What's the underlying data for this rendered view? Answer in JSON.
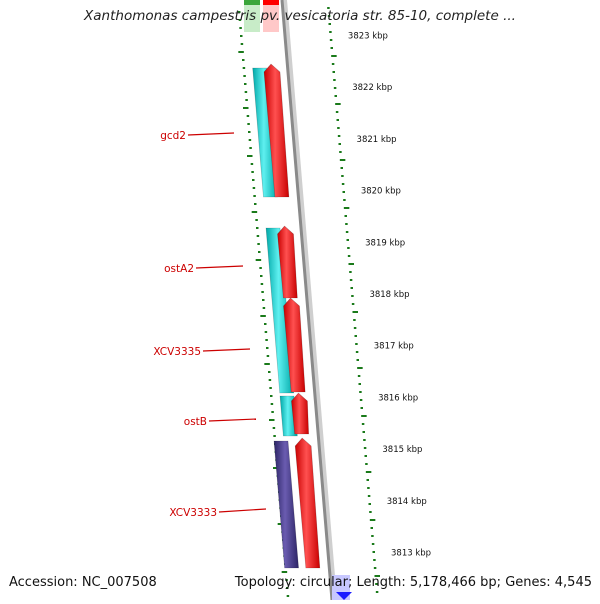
{
  "title": "Xanthomonas campestris pv. vesicatoria str. 85-10, complete ...",
  "colors": {
    "leading_strand": "#00c8c8",
    "lagging_strand": "#ff0000",
    "special_gene": "#4a3c8c",
    "label": "#cc0000",
    "tick": "#1a7a1a",
    "backbone": "#8a8a8a"
  },
  "genes": [
    {
      "name": "gcd2",
      "strand": "leading"
    },
    {
      "name": "ostA2",
      "strand": "leading"
    },
    {
      "name": "XCV3335",
      "strand": "leading"
    },
    {
      "name": "ostB",
      "strand": "leading"
    },
    {
      "name": "XCV3333",
      "strand": "special"
    }
  ],
  "kbp_labels": [
    "3823 kbp",
    "3822 kbp",
    "3821 kbp",
    "3820 kbp",
    "3819 kbp",
    "3818 kbp",
    "3817 kbp",
    "3816 kbp",
    "3815 kbp",
    "3814 kbp",
    "3813 kbp"
  ],
  "footer": {
    "accession": "Accession: NC_007508",
    "topology": "Topology: circular",
    "length": "Length: 5,178,466 bp",
    "genes": "Genes: 4,545"
  }
}
